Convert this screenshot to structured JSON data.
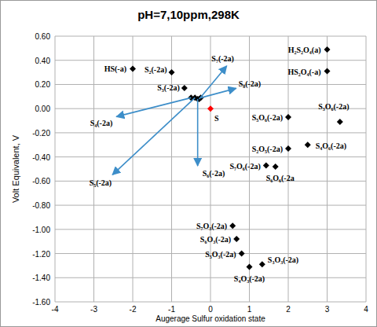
{
  "chart_data": {
    "type": "scatter",
    "title": "pH=7,10ppm,298K",
    "x_label": "Augerage Sulfur oxidation state",
    "y_label": "Volt Equivalent, V",
    "x": [
      -2,
      -1,
      -0.67,
      -0.5,
      -0.4,
      -0.33,
      -0.29,
      -0.25,
      0,
      3,
      3,
      2,
      3.33,
      2,
      2.5,
      1.43,
      1.67,
      0.57,
      0.67,
      0.8,
      1.0,
      1.33
    ],
    "values": [
      0.33,
      0.3,
      0.17,
      0.09,
      0.09,
      0.08,
      0.08,
      0.09,
      0,
      0.49,
      0.31,
      -0.07,
      -0.11,
      -0.33,
      -0.3,
      -0.47,
      -0.48,
      -0.97,
      -1.08,
      -1.2,
      -1.31,
      -1.29
    ],
    "labels": [
      "HS(-a)",
      "S₂(-2a)",
      "S₃(-2a)",
      "S₄(-2a)",
      "S₅(-2a)",
      "S₆(-2a)",
      "S₇(-2a)",
      "S₈(-2a)",
      "S",
      "H₂S₂O₄(a)",
      "HS₂O₄(-a)",
      "S₅O₆(-2a)",
      "S₃O₆(-2a)",
      "S₂O₅(-2a)",
      "S₄O₆(-2a)",
      "S₇O₆(-2a)",
      "S₆O₆(-2a",
      "S₇O₃(-2a)",
      "S₆O₃(-2a)",
      "S₅O₃(-2a)",
      "S₄O₃(-2a)",
      "S₃O₃(-2a)"
    ],
    "colors": [
      "#000000",
      "#000000",
      "#000000",
      "#000000",
      "#000000",
      "#000000",
      "#000000",
      "#000000",
      "#ff0000",
      "#000000",
      "#000000",
      "#000000",
      "#000000",
      "#000000",
      "#000000",
      "#000000",
      "#000000",
      "#000000",
      "#000000",
      "#000000",
      "#000000",
      "#000000"
    ],
    "marker": "diamond",
    "xlim": [
      -4,
      4
    ],
    "xticks": [
      -4,
      -3,
      -2,
      -1,
      0,
      1,
      2,
      3,
      4
    ],
    "ylim": [
      -1.6,
      0.6
    ],
    "yticks": [
      {
        "value": -1.6,
        "label": "-1.60"
      },
      {
        "value": -1.4,
        "label": "-1.40"
      },
      {
        "value": -1.2,
        "label": "-1.20"
      },
      {
        "value": -1.0,
        "label": "-1.00"
      },
      {
        "value": -0.8,
        "label": "-0.80"
      },
      {
        "value": -0.6,
        "label": "-0.60"
      },
      {
        "value": -0.4,
        "label": "-0.40"
      },
      {
        "value": -0.2,
        "label": "-0.20"
      },
      {
        "value": 0,
        "label": "0.00"
      },
      {
        "value": 0.2,
        "label": "0.20"
      },
      {
        "value": 0.4,
        "label": "0.40"
      },
      {
        "value": 0.6,
        "label": "0.60"
      }
    ],
    "grid": true
  }
}
